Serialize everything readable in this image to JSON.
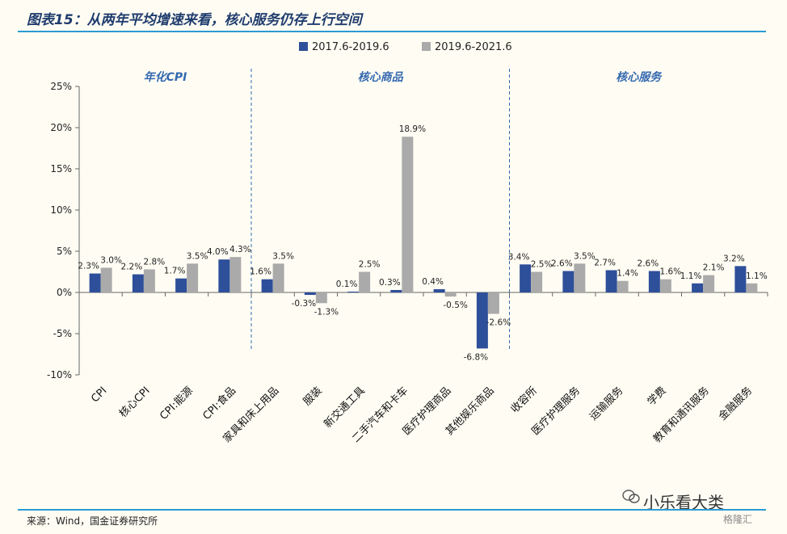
{
  "title": "图表15：从两年平均增速来看，核心服务仍存上行空间",
  "source": "来源：Wind，国金证券研究所",
  "watermark": "小乐看大类",
  "watermark_logo": "格隆汇",
  "colors": {
    "series1": "#2e4f9a",
    "series2": "#aaaaaa",
    "group_label": "#3569b0",
    "divider": "#3569b0",
    "rule": "#2b9bd6"
  },
  "chart_data": {
    "type": "bar",
    "ylim": [
      -10,
      25
    ],
    "yticks": [
      -10,
      -5,
      0,
      5,
      10,
      15,
      20,
      25
    ],
    "ytick_labels": [
      "-10%",
      "-5%",
      "0%",
      "5%",
      "10%",
      "15%",
      "20%",
      "25%"
    ],
    "legend_position": "top",
    "grid": false,
    "groups": [
      {
        "label": "年化CPI",
        "start": 0,
        "end": 3
      },
      {
        "label": "核心商品",
        "start": 4,
        "end": 9
      },
      {
        "label": "核心服务",
        "start": 10,
        "end": 15
      }
    ],
    "categories": [
      "CPI",
      "核心CPI",
      "CPI:能源",
      "CPI:食品",
      "家具和床上用品",
      "服装",
      "新交通工具",
      "二手汽车和卡车",
      "医疗护理商品",
      "其他娱乐商品",
      "收容所",
      "医疗护理服务",
      "运输服务",
      "学费",
      "教育和通讯服务",
      "金融服务"
    ],
    "series": [
      {
        "name": "2017.6-2019.6",
        "values": [
          2.3,
          2.2,
          1.7,
          4.0,
          1.6,
          -0.3,
          0.1,
          0.3,
          0.4,
          -6.8,
          3.4,
          2.6,
          2.7,
          2.6,
          1.1,
          3.2
        ],
        "labels": [
          "2.3%",
          "2.2%",
          "1.7%",
          "4.0%",
          "1.6%",
          "-0.3%",
          "0.1%",
          "0.3%",
          "0.4%",
          "-6.8%",
          "3.4%",
          "2.6%",
          "2.7%",
          "2.6%",
          "1.1%",
          "3.2%"
        ]
      },
      {
        "name": "2019.6-2021.6",
        "values": [
          3.0,
          2.8,
          3.5,
          4.3,
          3.5,
          -1.3,
          2.5,
          18.9,
          -0.5,
          -2.6,
          2.5,
          3.5,
          1.4,
          1.6,
          2.1,
          1.1
        ],
        "labels": [
          "3.0%",
          "2.8%",
          "3.5%",
          "4.3%",
          "3.5%",
          "-1.3%",
          "2.5%",
          "18.9%",
          "-0.5%",
          "-2.6%",
          "2.5%",
          "3.5%",
          "1.4%",
          "1.6%",
          "2.1%",
          "1.1%"
        ]
      }
    ]
  }
}
